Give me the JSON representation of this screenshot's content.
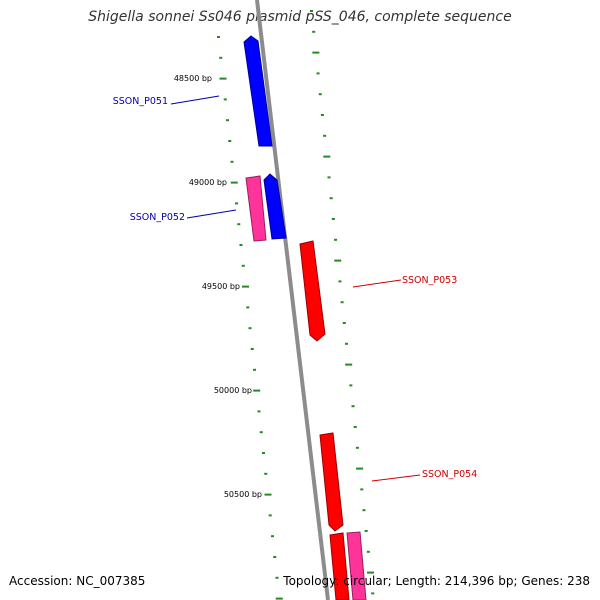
{
  "title": "Shigella sonnei Ss046 plasmid pSS_046, complete sequence",
  "accession_text": "Accession: NC_007385",
  "summary_text": "Topology: circular; Length: 214,396 bp; Genes: 238",
  "scale_labels": [
    "48500 bp",
    "49000 bp",
    "49500 bp",
    "50000 bp",
    "50500 bp"
  ],
  "genes": [
    {
      "label": "SSON_P051",
      "color": "#0000ff",
      "strand": "forward"
    },
    {
      "label": "SSON_P052",
      "color": "#0000ff",
      "strand": "forward"
    },
    {
      "label": "",
      "color": "#ff3399",
      "strand": "forward"
    },
    {
      "label": "SSON_P053",
      "color": "#ff0000",
      "strand": "reverse"
    },
    {
      "label": "SSON_P054",
      "color": "#ff0000",
      "strand": "reverse"
    },
    {
      "label": "",
      "color": "#ff0000",
      "strand": "reverse"
    },
    {
      "label": "",
      "color": "#ff3399",
      "strand": "reverse"
    }
  ],
  "colors": {
    "backbone": "#8c8c8c",
    "tick_marks": "#228b22",
    "forward_label": "#0000aa",
    "reverse_label": "#cc0000"
  }
}
